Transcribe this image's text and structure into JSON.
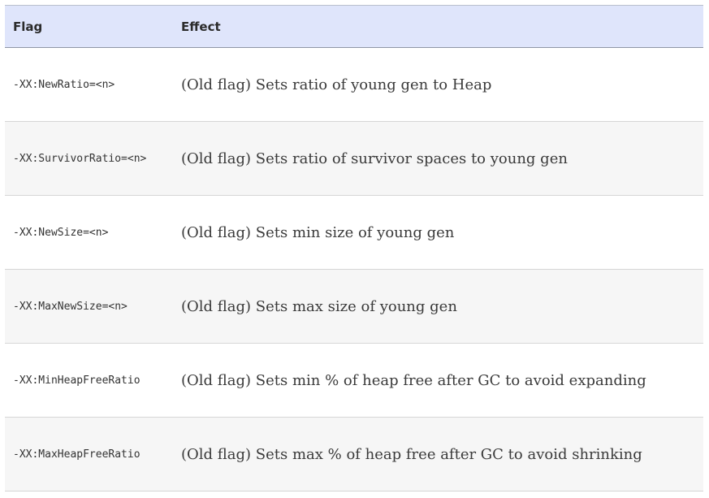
{
  "table": {
    "headers": {
      "flag": "Flag",
      "effect": "Effect"
    },
    "rows": [
      {
        "flag": "-XX:NewRatio=<n>",
        "effect": "(Old flag) Sets ratio of young gen to Heap"
      },
      {
        "flag": "-XX:SurvivorRatio=<n>",
        "effect": "(Old flag) Sets ratio of survivor spaces to young gen"
      },
      {
        "flag": "-XX:NewSize=<n>",
        "effect": "(Old flag) Sets min size of young gen"
      },
      {
        "flag": "-XX:MaxNewSize=<n>",
        "effect": "(Old flag) Sets max size of young gen"
      },
      {
        "flag": "-XX:MinHeapFreeRatio",
        "effect": "(Old flag) Sets min % of heap free after GC to avoid expanding"
      },
      {
        "flag": "-XX:MaxHeapFreeRatio",
        "effect": "(Old flag) Sets max % of heap free after GC to avoid shrinking"
      }
    ]
  }
}
